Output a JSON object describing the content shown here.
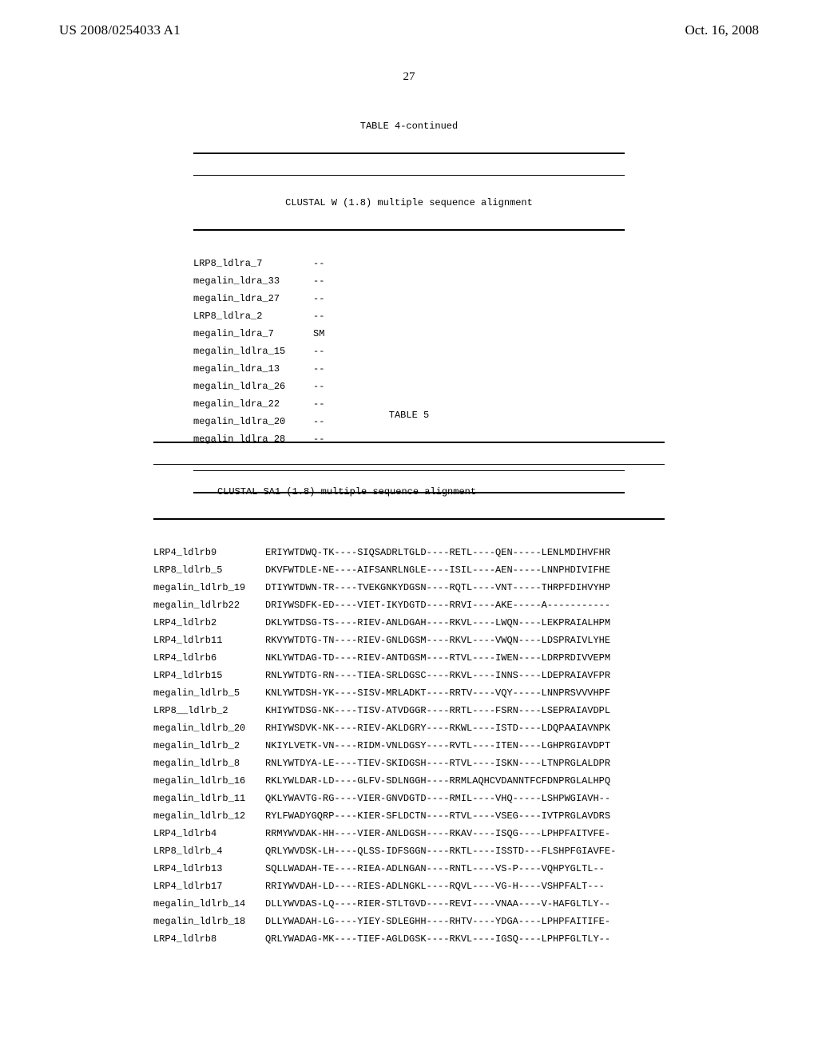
{
  "header": {
    "left": "US 2008/0254033 A1",
    "right": "Oct. 16, 2008",
    "page_number": "27"
  },
  "table4": {
    "title": "TABLE 4-continued",
    "subtitle": "CLUSTAL W (1.8) multiple sequence alignment",
    "rows": [
      {
        "name": "LRP8_ldlra_7",
        "seq": "--"
      },
      {
        "name": "megalin_ldra_33",
        "seq": "--"
      },
      {
        "name": "megalin_ldra_27",
        "seq": "--"
      },
      {
        "name": "LRP8_ldlra_2",
        "seq": "--"
      },
      {
        "name": "megalin_ldra_7",
        "seq": "SM"
      },
      {
        "name": "megalin_ldlra_15",
        "seq": "--"
      },
      {
        "name": "megalin_ldra_13",
        "seq": "--"
      },
      {
        "name": "megalin_ldlra_26",
        "seq": "--"
      },
      {
        "name": "megalin_ldra_22",
        "seq": "--"
      },
      {
        "name": "megalin_ldlra_20",
        "seq": "--"
      },
      {
        "name": "megalin_ldlra_28",
        "seq": "--"
      }
    ]
  },
  "table5": {
    "title": "TABLE 5",
    "subtitle": "CLUSTAL SA1 (1.8) multiple sequence alignment",
    "rows": [
      {
        "name": "LRP4_ldlrb9",
        "seq": "ERIYWTDWQ-TK----SIQSADRLTGLD----RETL----QEN-----LENLMDIHVFHR"
      },
      {
        "name": "LRP8_ldlrb_5",
        "seq": "DKVFWTDLE-NE----AIFSANRLNGLE----ISIL----AEN-----LNNPHDIVIFHE"
      },
      {
        "name": "megalin_ldlrb_19",
        "seq": "DTIYWTDWN-TR----TVEKGNKYDGSN----RQTL----VNT-----THRPFDIHVYHP"
      },
      {
        "name": "megalin_ldlrb22",
        "seq": "DRIYWSDFK-ED----VIET-IKYDGTD----RRVI----AKE-----A-----------"
      },
      {
        "name": "LRP4_ldlrb2",
        "seq": "DKLYWTDSG-TS----RIEV-ANLDGAH----RKVL----LWQN----LEKPRAIALHPM"
      },
      {
        "name": "LRP4_ldlrb11",
        "seq": "RKVYWTDTG-TN----RIEV-GNLDGSM----RKVL----VWQN----LDSPRAIVLYHE"
      },
      {
        "name": "LRP4_ldlrb6",
        "seq": "NKLYWTDAG-TD----RIEV-ANTDGSM----RTVL----IWEN----LDRPRDIVVEPM"
      },
      {
        "name": "LRP4_ldlrb15",
        "seq": "RNLYWTDTG-RN----TIEA-SRLDGSC----RKVL----INNS----LDEPRAIAVFPR"
      },
      {
        "name": "megalin_ldlrb_5",
        "seq": "KNLYWTDSH-YK----SISV-MRLADKT----RRTV----VQY-----LNNPRSVVVHPF"
      },
      {
        "name": "LRP8__ldlrb_2",
        "seq": "KHIYWTDSG-NK----TISV-ATVDGGR----RRTL----FSRN----LSEPRAIAVDPL"
      },
      {
        "name": "megalin_ldlrb_20",
        "seq": "RHIYWSDVK-NK----RIEV-AKLDGRY----RKWL----ISTD----LDQPAAIAVNPK"
      },
      {
        "name": "megalin_ldlrb_2",
        "seq": "NKIYLVETK-VN----RIDM-VNLDGSY----RVTL----ITEN----LGHPRGIAVDPT"
      },
      {
        "name": "megalin_ldlrb_8",
        "seq": "RNLYWTDYA-LE----TIEV-SKIDGSH----RTVL----ISKN----LTNPRGLALDPR"
      },
      {
        "name": "megalin_ldlrb_16",
        "seq": "RKLYWLDAR-LD----GLFV-SDLNGGH----RRMLAQHCVDANNTFCFDNPRGLALHPQ"
      },
      {
        "name": "megalin_ldlrb_11",
        "seq": "QKLYWAVTG-RG----VIER-GNVDGTD----RMIL----VHQ-----LSHPWGIAVH--"
      },
      {
        "name": "megalin_ldlrb_12",
        "seq": "RYLFWADYGQRP----KIER-SFLDCTN----RTVL----VSEG----IVTPRGLAVDRS"
      },
      {
        "name": "LRP4_ldlrb4",
        "seq": "RRMYWVDAK-HH----VIER-ANLDGSH----RKAV----ISQG----LPHPFAITVFE-"
      },
      {
        "name": "LRP8_ldlrb_4",
        "seq": "QRLYWVDSK-LH----QLSS-IDFSGGN----RKTL----ISSTD---FLSHPFGIAVFE-"
      },
      {
        "name": "LRP4_ldlrb13",
        "seq": "SQLLWADAH-TE----RIEA-ADLNGAN----RNTL----VS-P----VQHPYGLTL--"
      },
      {
        "name": "LRP4_ldlrb17",
        "seq": "RRIYWVDAH-LD----RIES-ADLNGKL----RQVL----VG-H----VSHPFALT---"
      },
      {
        "name": "megalin_ldlrb_14",
        "seq": "DLLYWVDAS-LQ----RIER-STLTGVD----REVI----VNAA----V-HAFGLTLY--"
      },
      {
        "name": "megalin_ldlrb_18",
        "seq": "DLLYWADAH-LG----YIEY-SDLEGHH----RHTV----YDGA----LPHPFAITIFE-"
      },
      {
        "name": "LRP4_ldlrb8",
        "seq": "QRLYWADAG-MK----TIEF-AGLDGSK----RKVL----IGSQ----LPHPFGLTLY--"
      }
    ]
  }
}
